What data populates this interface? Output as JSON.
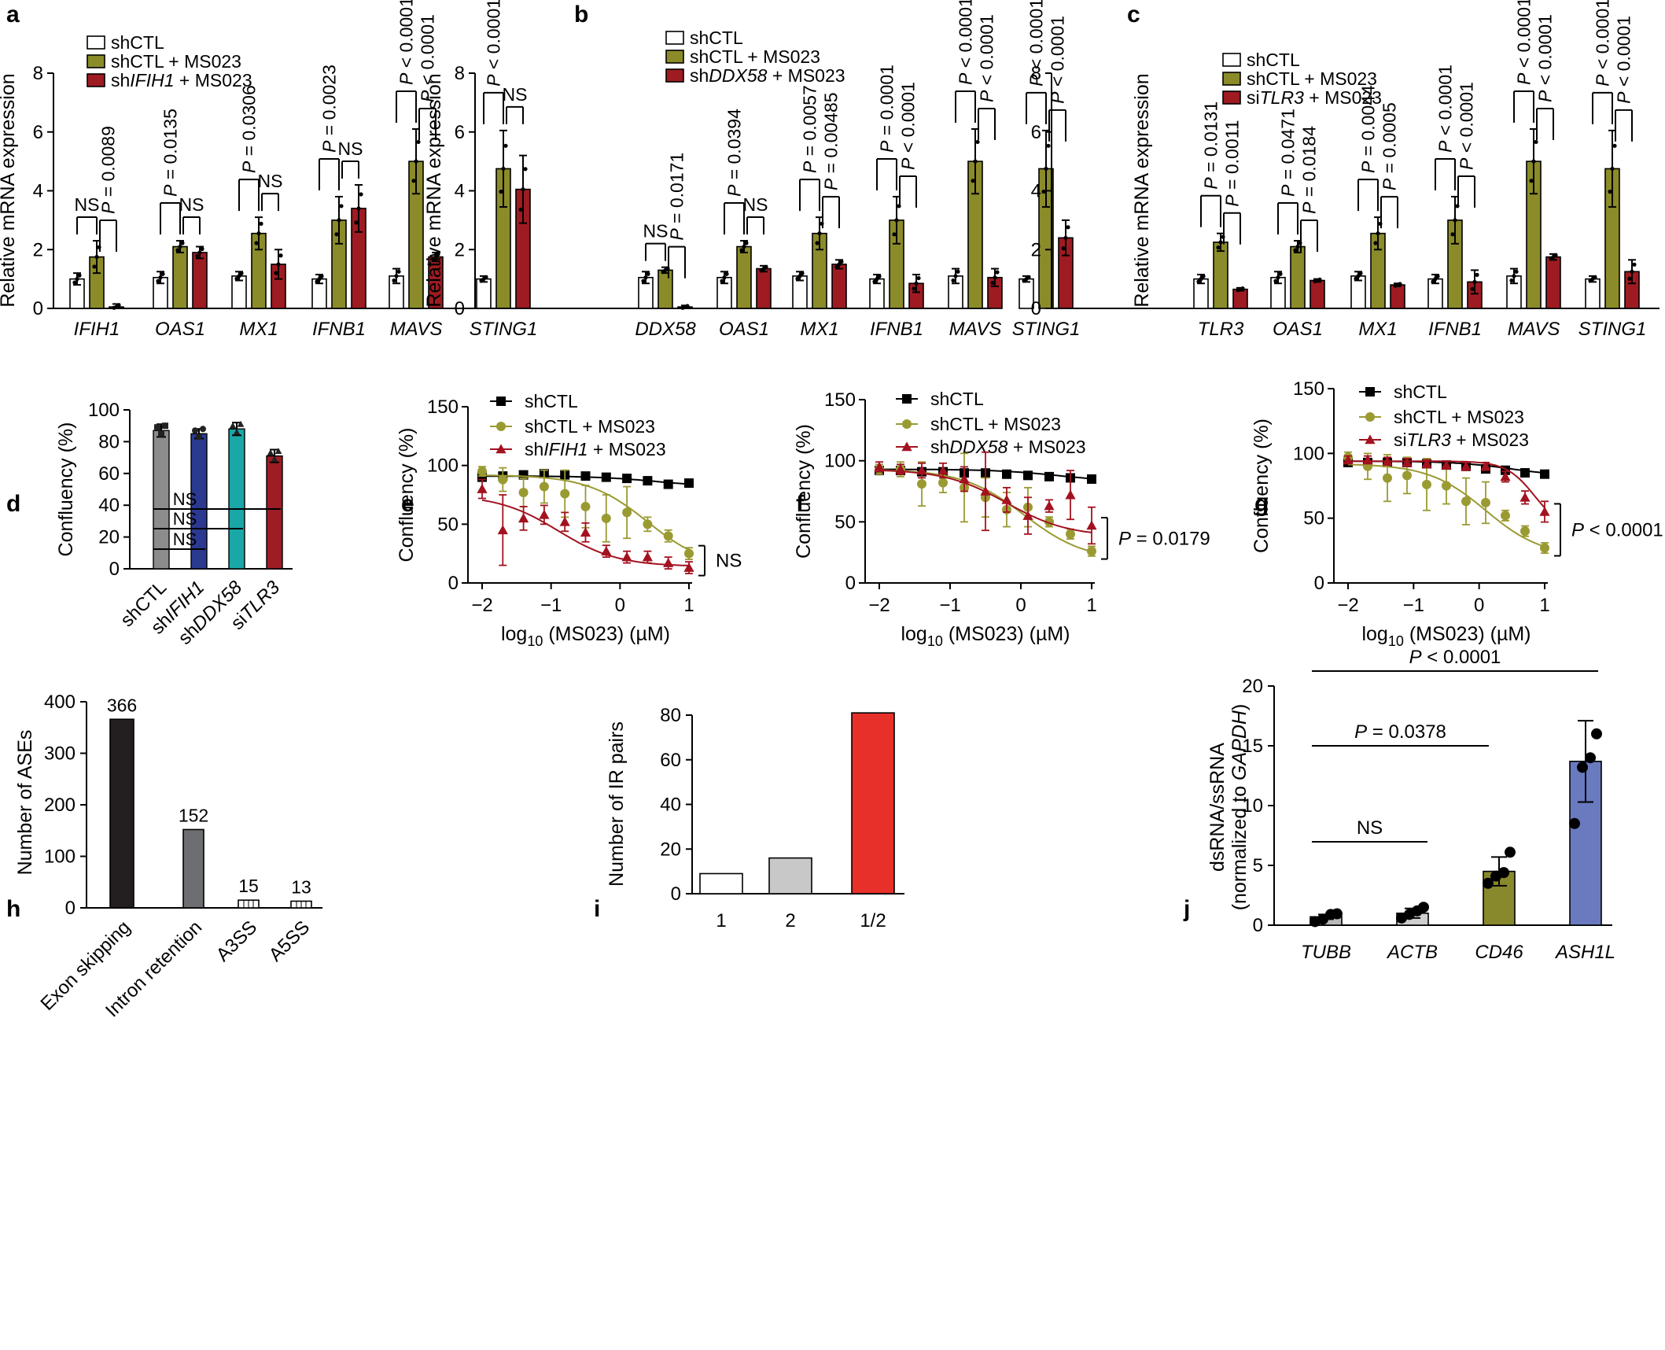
{
  "colors": {
    "white": "#ffffff",
    "olive": "#8b8b2a",
    "darkred": "#9e1b22",
    "black": "#000000",
    "grey": "#8c8c8c",
    "navy": "#2b3990",
    "teal": "#1aa7a7",
    "red": "#9c1d24",
    "curveOlive": "#9a9a32",
    "curveRed": "#a3121f",
    "dark": "#231f20",
    "mid": "#6d6e71",
    "light": "#c8c8c8",
    "brightRed": "#e8302a",
    "tealBar": "#8a8a8a",
    "jgrey": "#b9b9b9",
    "jlight": "#cfcfcf",
    "jolive": "#88882c",
    "jblue": "#6a7abf"
  },
  "panel_labels": {
    "a": "a",
    "b": "b",
    "c": "c",
    "d": "d",
    "e": "e",
    "f": "f",
    "g": "g",
    "h": "h",
    "i": "i",
    "j": "j"
  },
  "chart_data": [
    {
      "id": "a",
      "type": "bar",
      "ylabel": "Relative mRNA expression",
      "ylim": [
        0,
        8
      ],
      "yticks": [
        "0",
        "2",
        "4",
        "6",
        "8"
      ],
      "categories": [
        "IFIH1",
        "OAS1",
        "MX1",
        "IFNB1",
        "MAVS",
        "STING1"
      ],
      "legend": [
        {
          "pre": "shCTL",
          "it": "",
          "post": ""
        },
        {
          "pre": "shCTL + MS023",
          "it": "",
          "post": ""
        },
        {
          "pre": "sh",
          "it": "IFIH1",
          "post": " + MS023"
        }
      ],
      "series": [
        {
          "name": "shCTL",
          "values": [
            1.0,
            1.05,
            1.1,
            1.0,
            1.1,
            1.0
          ],
          "errors": [
            0.2,
            0.2,
            0.15,
            0.15,
            0.25,
            0.1
          ]
        },
        {
          "name": "shCTL + MS023",
          "values": [
            1.75,
            2.1,
            2.55,
            3.0,
            5.0,
            4.75
          ],
          "errors": [
            0.55,
            0.2,
            0.55,
            0.8,
            1.1,
            1.3
          ]
        },
        {
          "name": "shIFIH1 + MS023",
          "values": [
            0.05,
            1.9,
            1.5,
            3.4,
            1.75,
            4.05
          ],
          "errors": [
            0.1,
            0.2,
            0.5,
            0.8,
            0.15,
            1.15
          ]
        }
      ],
      "stats": [
        [
          "NS",
          "P = 0.0089"
        ],
        [
          "P = 0.0135",
          "NS"
        ],
        [
          "P = 0.0306",
          "NS"
        ],
        [
          "P = 0.0023",
          "NS"
        ],
        [
          "P < 0.0001",
          "P < 0.0001"
        ],
        [
          "P < 0.0001",
          "NS"
        ]
      ]
    },
    {
      "id": "b",
      "type": "bar",
      "ylabel": "Relative mRNA expression",
      "ylim": [
        0,
        8
      ],
      "yticks": [
        "0",
        "2",
        "4",
        "6",
        "8"
      ],
      "categories": [
        "DDX58",
        "OAS1",
        "MX1",
        "IFNB1",
        "MAVS",
        "STING1"
      ],
      "legend": [
        {
          "pre": "shCTL",
          "it": "",
          "post": ""
        },
        {
          "pre": "shCTL + MS023",
          "it": "",
          "post": ""
        },
        {
          "pre": "sh",
          "it": "DDX58",
          "post": " + MS023"
        }
      ],
      "series": [
        {
          "name": "shCTL",
          "values": [
            1.05,
            1.05,
            1.1,
            1.0,
            1.1,
            1.0
          ],
          "errors": [
            0.2,
            0.2,
            0.15,
            0.15,
            0.25,
            0.1
          ]
        },
        {
          "name": "shCTL + MS023",
          "values": [
            1.3,
            2.1,
            2.55,
            3.0,
            5.0,
            4.75
          ],
          "errors": [
            0.1,
            0.2,
            0.55,
            0.8,
            1.1,
            1.3
          ]
        },
        {
          "name": "shDDX58 + MS023",
          "values": [
            0.05,
            1.35,
            1.5,
            0.85,
            1.05,
            2.4
          ],
          "errors": [
            0.05,
            0.1,
            0.15,
            0.3,
            0.3,
            0.6
          ]
        }
      ],
      "stats": [
        [
          "NS",
          "P = 0.0171"
        ],
        [
          "P = 0.0394",
          "NS"
        ],
        [
          "P = 0.0057",
          "P = 0.00485"
        ],
        [
          "P = 0.0001",
          "P < 0.0001"
        ],
        [
          "P < 0.0001",
          "P < 0.0001"
        ],
        [
          "P < 0.0001",
          "P < 0.0001"
        ]
      ]
    },
    {
      "id": "c",
      "type": "bar",
      "ylabel": "Relative mRNA expression",
      "ylim": [
        0,
        8
      ],
      "yticks": [
        "0",
        "2",
        "4",
        "6",
        "8"
      ],
      "categories": [
        "TLR3",
        "OAS1",
        "MX1",
        "IFNB1",
        "MAVS",
        "STING1"
      ],
      "legend": [
        {
          "pre": "shCTL",
          "it": "",
          "post": ""
        },
        {
          "pre": "shCTL + MS023",
          "it": "",
          "post": ""
        },
        {
          "pre": "si",
          "it": "TLR3",
          "post": " + MS023"
        }
      ],
      "series": [
        {
          "name": "shCTL",
          "values": [
            1.0,
            1.05,
            1.1,
            1.0,
            1.1,
            1.0
          ],
          "errors": [
            0.15,
            0.2,
            0.15,
            0.15,
            0.25,
            0.1
          ]
        },
        {
          "name": "shCTL + MS023",
          "values": [
            2.25,
            2.1,
            2.55,
            3.0,
            5.0,
            4.75
          ],
          "errors": [
            0.3,
            0.2,
            0.55,
            0.8,
            1.1,
            1.3
          ]
        },
        {
          "name": "siTLR3 + MS023",
          "values": [
            0.65,
            0.95,
            0.8,
            0.9,
            1.75,
            1.25
          ],
          "errors": [
            0.05,
            0.05,
            0.05,
            0.4,
            0.1,
            0.4
          ]
        }
      ],
      "stats": [
        [
          "P = 0.0131",
          "P = 0.0011"
        ],
        [
          "P = 0.0471",
          "P = 0.0184"
        ],
        [
          "P = 0.0044",
          "P = 0.0005"
        ],
        [
          "P < 0.0001",
          "P < 0.0001"
        ],
        [
          "P < 0.0001",
          "P < 0.0001"
        ],
        [
          "P < 0.0001",
          "P < 0.0001"
        ]
      ]
    },
    {
      "id": "d",
      "type": "bar",
      "ylabel": "Confluency (%)",
      "ylim": [
        0,
        100
      ],
      "yticks": [
        "0",
        "20",
        "40",
        "60",
        "80",
        "100"
      ],
      "categories": [
        {
          "pre": "shCTL",
          "it": ""
        },
        {
          "pre": "sh",
          "it": "IFIH1"
        },
        {
          "pre": "sh",
          "it": "DDX58"
        },
        {
          "pre": "si",
          "it": "TLR3"
        }
      ],
      "values": [
        87,
        85,
        88,
        71
      ],
      "errors": [
        4,
        3,
        4,
        4
      ],
      "stats": [
        "NS",
        "NS",
        "NS"
      ]
    },
    {
      "id": "e",
      "type": "line",
      "xlabel": "log",
      "xlabel_sub": "10",
      "xlabel_post": " (MS023) (µM)",
      "ylabel": "Confluency (%)",
      "xlim": [
        -2,
        1
      ],
      "ylim": [
        0,
        150
      ],
      "xticks": [
        "−2",
        "−1",
        "0",
        "1"
      ],
      "yticks": [
        "0",
        "50",
        "100",
        "150"
      ],
      "x": [
        -2,
        -1.7,
        -1.4,
        -1.1,
        -0.8,
        -0.5,
        -0.2,
        0.1,
        0.4,
        0.7,
        1.0
      ],
      "legend": [
        {
          "pre": "shCTL",
          "it": "",
          "post": ""
        },
        {
          "pre": "shCTL + MS023",
          "it": "",
          "post": ""
        },
        {
          "pre": "sh",
          "it": "IFIH1",
          "post": " + MS023"
        }
      ],
      "series": [
        {
          "name": "shCTL",
          "values": [
            90,
            91,
            92,
            93,
            92,
            91,
            90,
            89,
            87,
            84,
            85
          ],
          "errors": [
            2,
            2,
            2,
            2,
            2,
            2,
            2,
            2,
            2,
            2,
            2
          ]
        },
        {
          "name": "shCTL + MS023",
          "values": [
            95,
            88,
            77,
            82,
            76,
            65,
            55,
            60,
            50,
            40,
            25
          ],
          "errors": [
            4,
            10,
            12,
            14,
            20,
            18,
            20,
            22,
            6,
            5,
            5
          ]
        },
        {
          "name": "shIFIH1 + MS023",
          "values": [
            80,
            45,
            55,
            58,
            52,
            43,
            27,
            22,
            22,
            17,
            13
          ],
          "errors": [
            8,
            30,
            10,
            8,
            8,
            8,
            5,
            5,
            5,
            5,
            5
          ]
        }
      ],
      "fits": [
        {
          "top": 91,
          "bottom": 82,
          "ic50": 0.5,
          "hill": 1
        },
        {
          "top": 92,
          "bottom": 12,
          "ic50": 0.4,
          "hill": 1
        },
        {
          "top": 75,
          "bottom": 14,
          "ic50": -0.9,
          "hill": 1
        }
      ],
      "stat": "NS"
    },
    {
      "id": "f",
      "type": "line",
      "xlabel": "log",
      "xlabel_sub": "10",
      "xlabel_post": " (MS023) (µM)",
      "ylabel": "Confluency (%)",
      "xlim": [
        -2,
        1
      ],
      "ylim": [
        0,
        150
      ],
      "xticks": [
        "−2",
        "−1",
        "0",
        "1"
      ],
      "yticks": [
        "0",
        "50",
        "100",
        "150"
      ],
      "x": [
        -2,
        -1.7,
        -1.4,
        -1.1,
        -0.8,
        -0.5,
        -0.2,
        0.1,
        0.4,
        0.7,
        1.0
      ],
      "legend": [
        {
          "pre": "shCTL",
          "it": "",
          "post": ""
        },
        {
          "pre": "shCTL + MS023",
          "it": "",
          "post": ""
        },
        {
          "pre": "sh",
          "it": "DDX58",
          "post": " + MS023"
        }
      ],
      "series": [
        {
          "name": "shCTL",
          "values": [
            92,
            92,
            91,
            91,
            90,
            90,
            89,
            88,
            87,
            86,
            85
          ],
          "errors": [
            2,
            2,
            2,
            2,
            2,
            2,
            2,
            2,
            2,
            2,
            2
          ]
        },
        {
          "name": "shCTL + MS023",
          "values": [
            93,
            93,
            81,
            82,
            78,
            70,
            60,
            62,
            50,
            40,
            26
          ],
          "errors": [
            4,
            6,
            18,
            8,
            28,
            16,
            14,
            16,
            4,
            4,
            4
          ]
        },
        {
          "name": "shDDX58 + MS023",
          "values": [
            95,
            93,
            92,
            92,
            85,
            75,
            68,
            55,
            63,
            72,
            47
          ],
          "errors": [
            4,
            4,
            6,
            6,
            10,
            32,
            10,
            15,
            5,
            20,
            15
          ]
        }
      ],
      "fits": [
        {
          "top": 93,
          "bottom": 83,
          "ic50": 0.5,
          "hill": 1
        },
        {
          "top": 93,
          "bottom": 18,
          "ic50": 0.05,
          "hill": 1
        },
        {
          "top": 93,
          "bottom": 38,
          "ic50": -0.2,
          "hill": 1
        }
      ],
      "stat": "P = 0.0179"
    },
    {
      "id": "g",
      "type": "line",
      "xlabel": "log",
      "xlabel_sub": "10",
      "xlabel_post": " (MS023) (µM)",
      "ylabel": "Confluency (%)",
      "xlim": [
        -2,
        1
      ],
      "ylim": [
        0,
        150
      ],
      "xticks": [
        "−2",
        "−1",
        "0",
        "1"
      ],
      "yticks": [
        "0",
        "50",
        "100",
        "150"
      ],
      "x": [
        -2,
        -1.7,
        -1.4,
        -1.1,
        -0.8,
        -0.5,
        -0.2,
        0.1,
        0.4,
        0.7,
        1.0
      ],
      "legend": [
        {
          "pre": "shCTL",
          "it": "",
          "post": ""
        },
        {
          "pre": "shCTL + MS023",
          "it": "",
          "post": ""
        },
        {
          "pre": "si",
          "it": "TLR3",
          "post": " + MS023"
        }
      ],
      "series": [
        {
          "name": "shCTL",
          "values": [
            93,
            93,
            93,
            93,
            92,
            91,
            90,
            88,
            87,
            85,
            84
          ],
          "errors": [
            2,
            2,
            2,
            2,
            2,
            2,
            2,
            2,
            2,
            2,
            2
          ]
        },
        {
          "name": "shCTL + MS023",
          "values": [
            97,
            90,
            81,
            83,
            76,
            75,
            63,
            62,
            52,
            40,
            27
          ],
          "errors": [
            4,
            10,
            18,
            14,
            20,
            14,
            18,
            16,
            4,
            4,
            4
          ]
        },
        {
          "name": "siTLR3 + MS023",
          "values": [
            95,
            95,
            94,
            93,
            92,
            91,
            90,
            90,
            82,
            66,
            55
          ],
          "errors": [
            3,
            3,
            3,
            3,
            3,
            3,
            3,
            3,
            4,
            5,
            8
          ]
        }
      ],
      "fits": [
        {
          "top": 94,
          "bottom": 82,
          "ic50": 0.5,
          "hill": 1
        },
        {
          "top": 92,
          "bottom": 20,
          "ic50": 0.1,
          "hill": 1
        },
        {
          "top": 94,
          "bottom": 40,
          "ic50": 0.85,
          "hill": 2
        }
      ],
      "stat": "P < 0.0001"
    },
    {
      "id": "h",
      "type": "bar",
      "ylabel": "Number of ASEs",
      "ylim": [
        0,
        400
      ],
      "yticks": [
        "0",
        "100",
        "200",
        "300",
        "400"
      ],
      "categories": [
        "Exon skipping",
        "Intron retention",
        "A3SS",
        "A5SS"
      ],
      "values": [
        366,
        152,
        15,
        13
      ],
      "labels": [
        "366",
        "152",
        "15",
        "13"
      ]
    },
    {
      "id": "i",
      "type": "bar",
      "ylabel": "Number of IR pairs",
      "ylim": [
        0,
        80
      ],
      "yticks": [
        "0",
        "20",
        "40",
        "60",
        "80"
      ],
      "categories": [
        "1",
        "2",
        "1/2"
      ],
      "values": [
        9,
        16,
        81
      ]
    },
    {
      "id": "j",
      "type": "bar",
      "ylabel": "dsRNA/ssRNA",
      "ylabel2_pre": "(normalized to ",
      "ylabel2_it": "GAPDH",
      "ylabel2_post": ")",
      "ylim": [
        0,
        20
      ],
      "yticks": [
        "0",
        "5",
        "10",
        "15",
        "20"
      ],
      "categories": [
        "TUBB",
        "ACTB",
        "CD46",
        "ASH1L"
      ],
      "values": [
        0.7,
        1.0,
        4.5,
        13.7
      ],
      "errors": [
        0.2,
        0.4,
        1.2,
        3.4
      ],
      "points": [
        [
          0.3,
          0.5,
          0.9,
          0.95
        ],
        [
          0.6,
          0.9,
          1.2,
          1.5
        ],
        [
          3.5,
          4.1,
          4.4,
          6.1
        ],
        [
          8.5,
          13.2,
          14.0,
          16.0
        ]
      ],
      "stats": [
        "NS",
        "P = 0.0378",
        "P < 0.0001"
      ]
    }
  ]
}
